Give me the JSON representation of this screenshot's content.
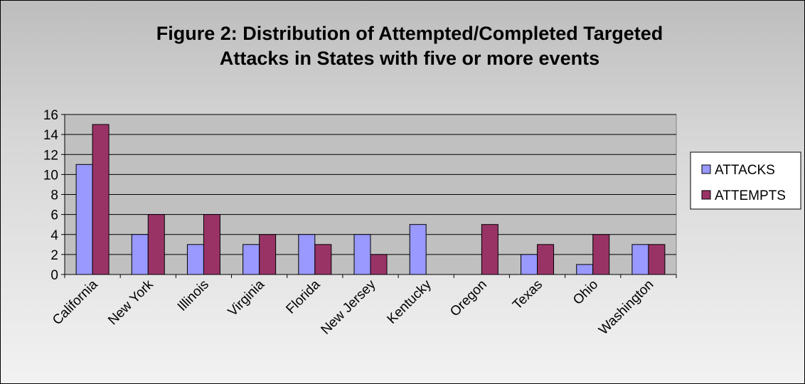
{
  "chart_data": {
    "type": "bar",
    "title_lines": [
      "Figure 2: Distribution of Attempted/Completed Targeted",
      "Attacks in States with five or more events"
    ],
    "categories": [
      "California",
      "New York",
      "Illinois",
      "Virginia",
      "Florida",
      "New Jersey",
      "Kentucky",
      "Oregon",
      "Texas",
      "Ohio",
      "Washington"
    ],
    "series": [
      {
        "name": "ATTACKS",
        "color": "#9999ff",
        "values": [
          11,
          4,
          3,
          3,
          4,
          4,
          5,
          0,
          2,
          1,
          3
        ]
      },
      {
        "name": "ATTEMPTS",
        "color": "#993366",
        "values": [
          15,
          6,
          6,
          4,
          3,
          2,
          0,
          5,
          3,
          4,
          3
        ]
      }
    ],
    "y_ticks": [
      0,
      2,
      4,
      6,
      8,
      10,
      12,
      14,
      16
    ],
    "ylim": [
      0,
      16
    ],
    "grid": true,
    "plot_background": "#c0c0c0",
    "legend_position": "right"
  }
}
